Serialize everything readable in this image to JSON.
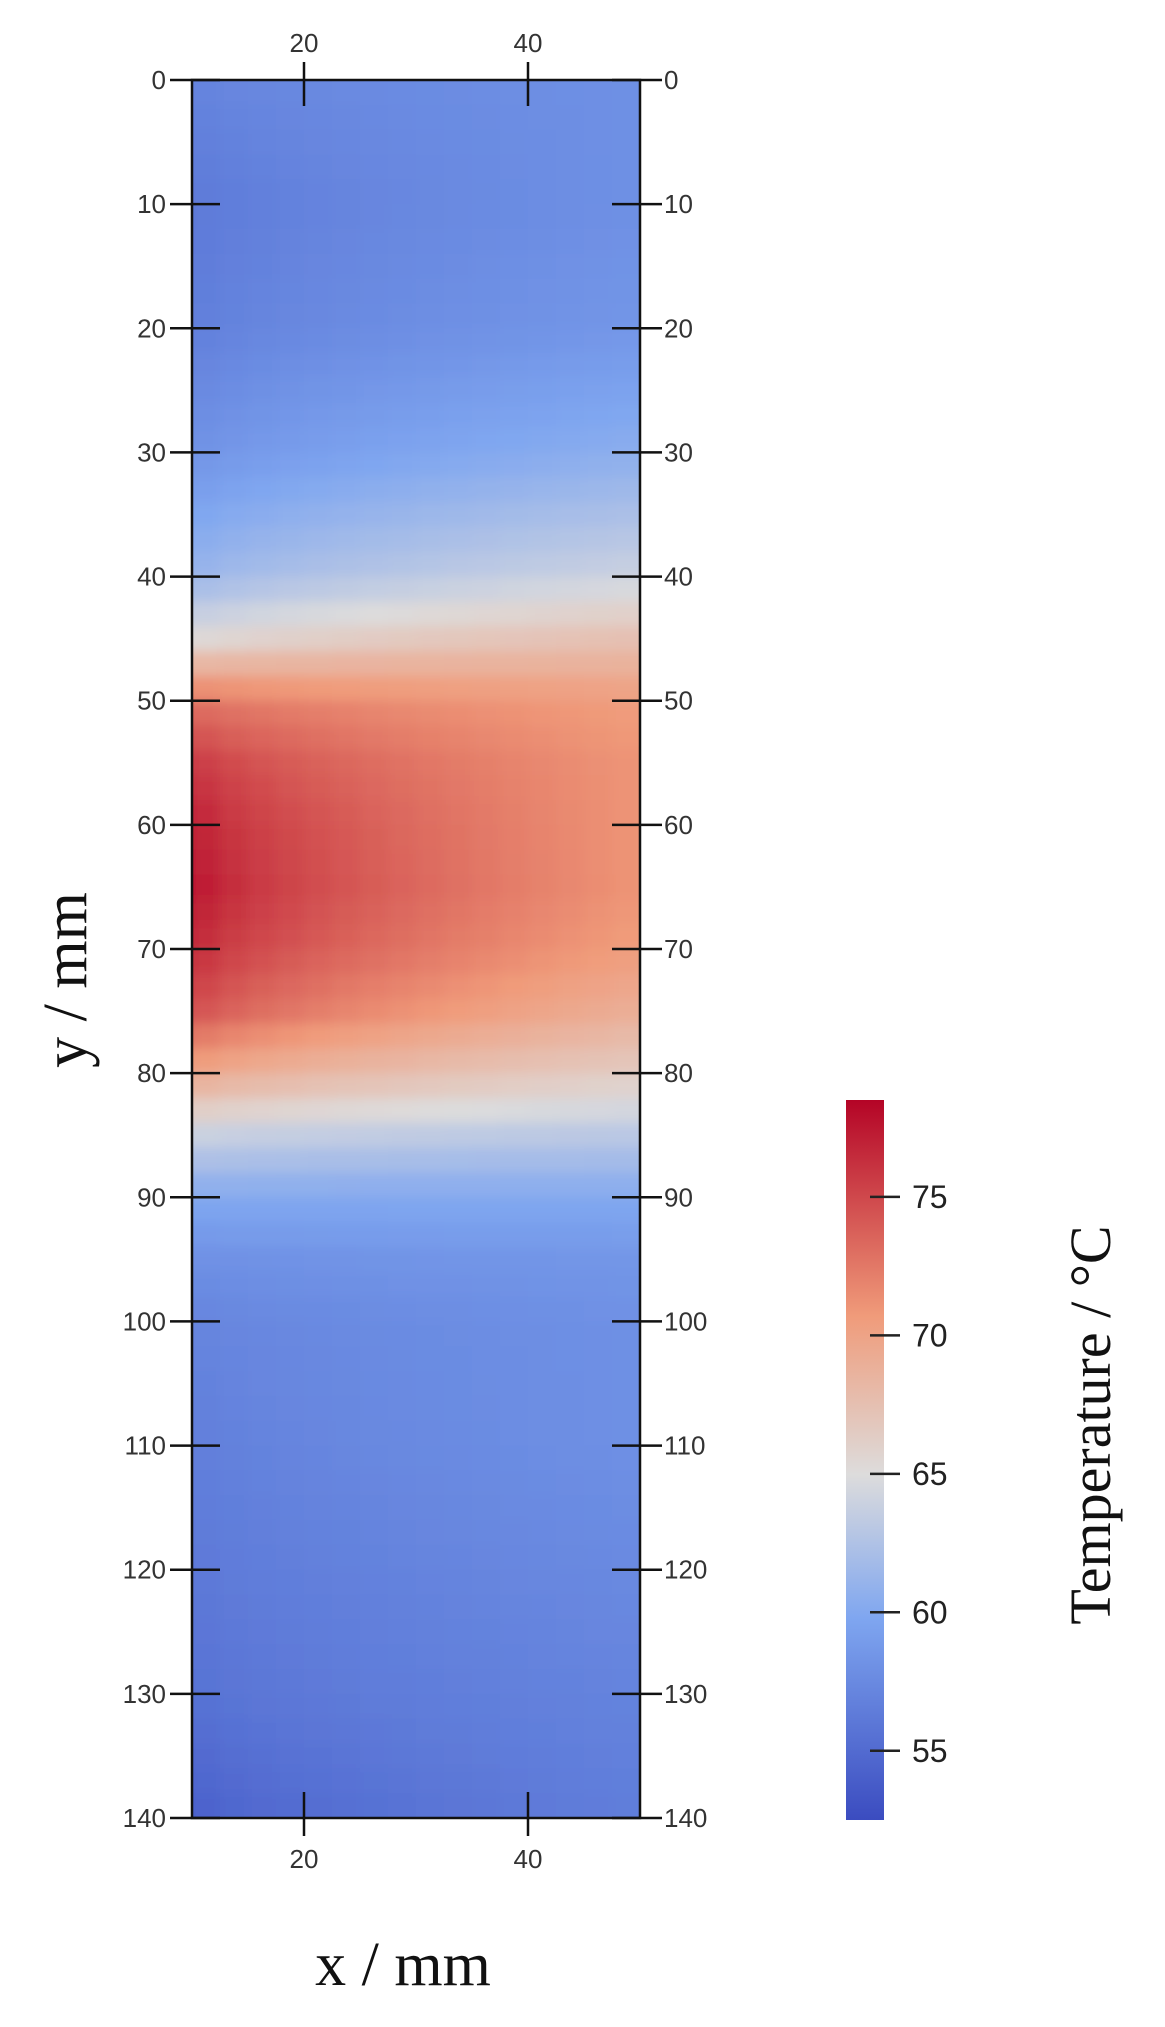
{
  "chart_data": {
    "type": "heatmap",
    "title": "",
    "xlabel": "x / mm",
    "ylabel": "y / mm",
    "xlim": [
      10,
      50
    ],
    "ylim": [
      0,
      140
    ],
    "y_inverted": true,
    "x_ticks": [
      20,
      40
    ],
    "y_ticks": [
      0,
      10,
      20,
      30,
      40,
      50,
      60,
      70,
      80,
      90,
      100,
      110,
      120,
      130,
      140
    ],
    "colorbar": {
      "label": "Temperature / °C",
      "range": [
        52.5,
        78.5
      ],
      "ticks": [
        55,
        60,
        65,
        70,
        75
      ],
      "colormap": "coolwarm",
      "colors": [
        "#3b4cc0",
        "#7fa6f0",
        "#dddcdc",
        "#f09b7a",
        "#b40426"
      ]
    },
    "profile_note_values": {
      "y": [
        0,
        10,
        20,
        30,
        40,
        45,
        50,
        55,
        60,
        65,
        70,
        75,
        80,
        85,
        90,
        95,
        100,
        110,
        120,
        130,
        140
      ],
      "temperature_left": [
        57,
        56,
        56.5,
        58,
        61,
        65,
        73,
        76,
        77.5,
        78,
        77,
        75,
        70,
        64,
        60,
        58,
        57,
        56.5,
        56,
        55.5,
        54
      ],
      "temperature_right": [
        58,
        58,
        58.5,
        60.5,
        64,
        67.5,
        70.5,
        71,
        71,
        71,
        70.5,
        69,
        66.5,
        63,
        60,
        58.5,
        58,
        58,
        57.5,
        57,
        56.5
      ]
    }
  }
}
